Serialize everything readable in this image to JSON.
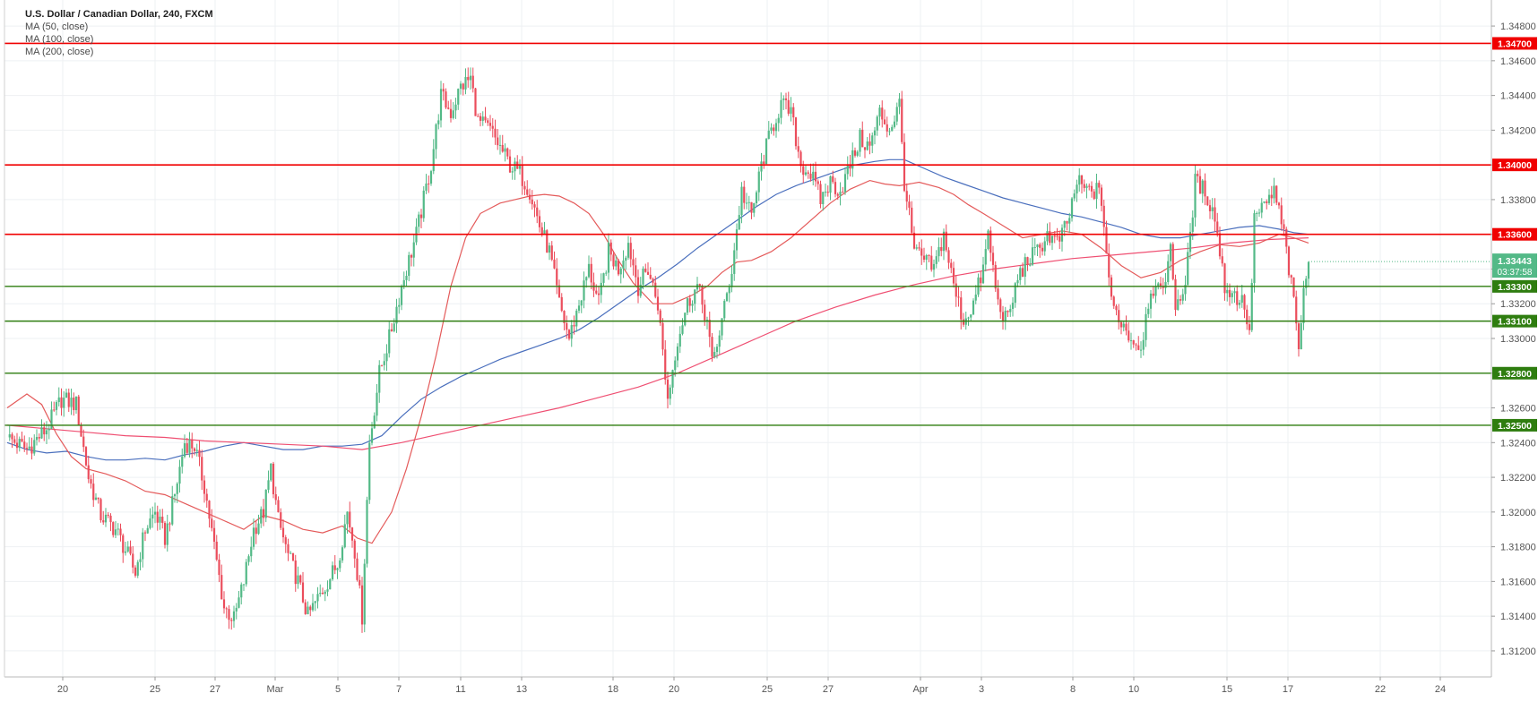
{
  "legend": {
    "title": "U.S. Dollar / Canadian Dollar, 240, FXCM",
    "ma1": "MA (50, close)",
    "ma2": "MA (100, close)",
    "ma3": "MA (200, close)"
  },
  "colors": {
    "up": "#53b987",
    "down": "#eb4d5c",
    "ma50": "#e45a5a",
    "ma100": "#4a6fbd",
    "ma200": "#ef4f72",
    "resistance": "#f00000",
    "support": "#2e7d0f",
    "grid": "#eef0f3",
    "axis_text": "#555555"
  },
  "chart_data": {
    "type": "candlestick",
    "title": "U.S. Dollar / Canadian Dollar, 240, FXCM",
    "ylim": [
      1.3105,
      1.3495
    ],
    "y_ticks": [
      "1.34800",
      "1.34600",
      "1.34400",
      "1.34200",
      "1.34000",
      "1.33800",
      "1.33600",
      "1.33400",
      "1.33200",
      "1.33000",
      "1.32800",
      "1.32600",
      "1.32400",
      "1.32200",
      "1.32000",
      "1.31800",
      "1.31600",
      "1.31400",
      "1.31200"
    ],
    "x_ticks": [
      "20",
      "25",
      "27",
      "Mar",
      "5",
      "7",
      "11",
      "13",
      "18",
      "20",
      "25",
      "27",
      "Apr",
      "3",
      "8",
      "10",
      "15",
      "17",
      "22",
      "24"
    ],
    "current_price": "1.33443",
    "countdown": "03:37:58",
    "resistance_levels": [
      {
        "value": 1.347,
        "label": "1.34700"
      },
      {
        "value": 1.34,
        "label": "1.34000"
      },
      {
        "value": 1.336,
        "label": "1.33600"
      }
    ],
    "support_levels": [
      {
        "value": 1.333,
        "label": "1.33300"
      },
      {
        "value": 1.331,
        "label": "1.33100"
      },
      {
        "value": 1.328,
        "label": "1.32800"
      },
      {
        "value": 1.325,
        "label": "1.32500"
      }
    ],
    "price_path": [
      [
        0,
        1.3243
      ],
      [
        8,
        1.3236
      ],
      [
        16,
        1.3248
      ],
      [
        22,
        1.3265
      ],
      [
        28,
        1.3262
      ],
      [
        33,
        1.322
      ],
      [
        38,
        1.3198
      ],
      [
        44,
        1.319
      ],
      [
        48,
        1.3178
      ],
      [
        52,
        1.3165
      ],
      [
        56,
        1.319
      ],
      [
        60,
        1.32
      ],
      [
        64,
        1.3185
      ],
      [
        68,
        1.321
      ],
      [
        72,
        1.324
      ],
      [
        76,
        1.3238
      ],
      [
        80,
        1.3215
      ],
      [
        84,
        1.318
      ],
      [
        88,
        1.3145
      ],
      [
        92,
        1.3138
      ],
      [
        96,
        1.316
      ],
      [
        100,
        1.319
      ],
      [
        104,
        1.32
      ],
      [
        107,
        1.3225
      ],
      [
        110,
        1.3195
      ],
      [
        114,
        1.3175
      ],
      [
        118,
        1.316
      ],
      [
        122,
        1.314
      ],
      [
        126,
        1.315
      ],
      [
        130,
        1.316
      ],
      [
        134,
        1.317
      ],
      [
        138,
        1.32
      ],
      [
        141,
        1.3178
      ],
      [
        144,
        1.314
      ],
      [
        147,
        1.324
      ],
      [
        151,
        1.328
      ],
      [
        155,
        1.33
      ],
      [
        160,
        1.333
      ],
      [
        166,
        1.336
      ],
      [
        172,
        1.34
      ],
      [
        176,
        1.344
      ],
      [
        180,
        1.343
      ],
      [
        184,
        1.3445
      ],
      [
        188,
        1.345
      ],
      [
        191,
        1.3425
      ],
      [
        196,
        1.342
      ],
      [
        200,
        1.341
      ],
      [
        204,
        1.34
      ],
      [
        208,
        1.3395
      ],
      [
        212,
        1.3385
      ],
      [
        216,
        1.3365
      ],
      [
        220,
        1.335
      ],
      [
        224,
        1.332
      ],
      [
        228,
        1.33
      ],
      [
        232,
        1.332
      ],
      [
        236,
        1.334
      ],
      [
        240,
        1.332
      ],
      [
        244,
        1.335
      ],
      [
        248,
        1.334
      ],
      [
        252,
        1.3355
      ],
      [
        256,
        1.333
      ],
      [
        260,
        1.334
      ],
      [
        264,
        1.332
      ],
      [
        268,
        1.3265
      ],
      [
        272,
        1.33
      ],
      [
        276,
        1.332
      ],
      [
        280,
        1.333
      ],
      [
        284,
        1.331
      ],
      [
        286,
        1.3285
      ],
      [
        290,
        1.331
      ],
      [
        294,
        1.334
      ],
      [
        298,
        1.3385
      ],
      [
        302,
        1.337
      ],
      [
        306,
        1.34
      ],
      [
        310,
        1.342
      ],
      [
        314,
        1.3435
      ],
      [
        318,
        1.343
      ],
      [
        322,
        1.34
      ],
      [
        326,
        1.3395
      ],
      [
        330,
        1.338
      ],
      [
        334,
        1.339
      ],
      [
        338,
        1.3385
      ],
      [
        342,
        1.34
      ],
      [
        346,
        1.3415
      ],
      [
        350,
        1.341
      ],
      [
        354,
        1.343
      ],
      [
        358,
        1.342
      ],
      [
        362,
        1.3435
      ],
      [
        364,
        1.339
      ],
      [
        368,
        1.335
      ],
      [
        372,
        1.3345
      ],
      [
        376,
        1.334
      ],
      [
        380,
        1.336
      ],
      [
        384,
        1.333
      ],
      [
        388,
        1.331
      ],
      [
        392,
        1.332
      ],
      [
        396,
        1.334
      ],
      [
        398,
        1.336
      ],
      [
        402,
        1.332
      ],
      [
        406,
        1.331
      ],
      [
        410,
        1.3335
      ],
      [
        414,
        1.3345
      ],
      [
        418,
        1.335
      ],
      [
        422,
        1.336
      ],
      [
        426,
        1.3355
      ],
      [
        430,
        1.3365
      ],
      [
        434,
        1.339
      ],
      [
        438,
        1.3385
      ],
      [
        442,
        1.3385
      ],
      [
        444,
        1.338
      ],
      [
        448,
        1.332
      ],
      [
        452,
        1.331
      ],
      [
        456,
        1.33
      ],
      [
        460,
        1.3295
      ],
      [
        464,
        1.333
      ],
      [
        468,
        1.3325
      ],
      [
        472,
        1.335
      ],
      [
        474,
        1.332
      ],
      [
        478,
        1.333
      ],
      [
        482,
        1.339
      ],
      [
        486,
        1.3385
      ],
      [
        490,
        1.337
      ],
      [
        494,
        1.333
      ],
      [
        498,
        1.3325
      ],
      [
        502,
        1.332
      ],
      [
        504,
        1.33
      ],
      [
        506,
        1.337
      ],
      [
        510,
        1.3375
      ],
      [
        514,
        1.3385
      ],
      [
        518,
        1.336
      ],
      [
        520,
        1.334
      ],
      [
        522,
        1.332
      ],
      [
        524,
        1.3295
      ],
      [
        526,
        1.3325
      ],
      [
        528,
        1.3344
      ]
    ],
    "ma50": [
      [
        0,
        1.326
      ],
      [
        8,
        1.3268
      ],
      [
        14,
        1.3262
      ],
      [
        20,
        1.3245
      ],
      [
        26,
        1.3232
      ],
      [
        32,
        1.3225
      ],
      [
        40,
        1.3222
      ],
      [
        48,
        1.3218
      ],
      [
        56,
        1.3212
      ],
      [
        64,
        1.321
      ],
      [
        72,
        1.3205
      ],
      [
        80,
        1.32
      ],
      [
        88,
        1.3195
      ],
      [
        96,
        1.319
      ],
      [
        104,
        1.3198
      ],
      [
        112,
        1.3195
      ],
      [
        120,
        1.319
      ],
      [
        128,
        1.3188
      ],
      [
        136,
        1.3192
      ],
      [
        142,
        1.3185
      ],
      [
        148,
        1.3182
      ],
      [
        156,
        1.32
      ],
      [
        162,
        1.3225
      ],
      [
        168,
        1.3255
      ],
      [
        174,
        1.329
      ],
      [
        180,
        1.333
      ],
      [
        186,
        1.3358
      ],
      [
        192,
        1.3372
      ],
      [
        200,
        1.3378
      ],
      [
        206,
        1.338
      ],
      [
        212,
        1.3382
      ],
      [
        218,
        1.3383
      ],
      [
        224,
        1.3382
      ],
      [
        230,
        1.3378
      ],
      [
        236,
        1.3372
      ],
      [
        242,
        1.336
      ],
      [
        248,
        1.3345
      ],
      [
        254,
        1.3332
      ],
      [
        262,
        1.332
      ],
      [
        270,
        1.332
      ],
      [
        278,
        1.3325
      ],
      [
        284,
        1.333
      ],
      [
        290,
        1.3338
      ],
      [
        296,
        1.3344
      ],
      [
        302,
        1.3345
      ],
      [
        310,
        1.335
      ],
      [
        318,
        1.3358
      ],
      [
        326,
        1.3368
      ],
      [
        334,
        1.3378
      ],
      [
        342,
        1.3386
      ],
      [
        350,
        1.3391
      ],
      [
        356,
        1.3389
      ],
      [
        362,
        1.3388
      ],
      [
        370,
        1.339
      ],
      [
        378,
        1.3387
      ],
      [
        384,
        1.3383
      ],
      [
        390,
        1.3377
      ],
      [
        396,
        1.3372
      ],
      [
        404,
        1.3365
      ],
      [
        412,
        1.3358
      ],
      [
        420,
        1.336
      ],
      [
        428,
        1.3362
      ],
      [
        436,
        1.336
      ],
      [
        444,
        1.3352
      ],
      [
        452,
        1.3342
      ],
      [
        460,
        1.3335
      ],
      [
        468,
        1.3338
      ],
      [
        476,
        1.3345
      ],
      [
        484,
        1.335
      ],
      [
        492,
        1.3354
      ],
      [
        500,
        1.3353
      ],
      [
        508,
        1.3355
      ],
      [
        516,
        1.336
      ],
      [
        522,
        1.3358
      ],
      [
        528,
        1.3355
      ]
    ],
    "ma100": [
      [
        0,
        1.324
      ],
      [
        8,
        1.3236
      ],
      [
        16,
        1.3234
      ],
      [
        24,
        1.3235
      ],
      [
        32,
        1.3232
      ],
      [
        40,
        1.323
      ],
      [
        48,
        1.323
      ],
      [
        56,
        1.3231
      ],
      [
        64,
        1.323
      ],
      [
        72,
        1.3233
      ],
      [
        80,
        1.3235
      ],
      [
        88,
        1.3238
      ],
      [
        96,
        1.324
      ],
      [
        104,
        1.3238
      ],
      [
        112,
        1.3236
      ],
      [
        120,
        1.3236
      ],
      [
        128,
        1.3238
      ],
      [
        136,
        1.3238
      ],
      [
        144,
        1.3239
      ],
      [
        152,
        1.3244
      ],
      [
        160,
        1.3255
      ],
      [
        168,
        1.3265
      ],
      [
        176,
        1.3272
      ],
      [
        184,
        1.3278
      ],
      [
        192,
        1.3283
      ],
      [
        200,
        1.3288
      ],
      [
        208,
        1.3292
      ],
      [
        216,
        1.3296
      ],
      [
        224,
        1.33
      ],
      [
        232,
        1.3305
      ],
      [
        240,
        1.3312
      ],
      [
        248,
        1.332
      ],
      [
        256,
        1.3328
      ],
      [
        264,
        1.3335
      ],
      [
        272,
        1.3343
      ],
      [
        280,
        1.3352
      ],
      [
        288,
        1.336
      ],
      [
        296,
        1.3368
      ],
      [
        304,
        1.3376
      ],
      [
        312,
        1.3383
      ],
      [
        320,
        1.3388
      ],
      [
        328,
        1.3392
      ],
      [
        336,
        1.3396
      ],
      [
        344,
        1.34
      ],
      [
        352,
        1.3402
      ],
      [
        358,
        1.3403
      ],
      [
        364,
        1.3403
      ],
      [
        372,
        1.3398
      ],
      [
        380,
        1.3393
      ],
      [
        388,
        1.3389
      ],
      [
        396,
        1.3385
      ],
      [
        404,
        1.3381
      ],
      [
        412,
        1.3378
      ],
      [
        420,
        1.3375
      ],
      [
        428,
        1.3372
      ],
      [
        436,
        1.337
      ],
      [
        444,
        1.3367
      ],
      [
        452,
        1.3364
      ],
      [
        460,
        1.336
      ],
      [
        468,
        1.3358
      ],
      [
        476,
        1.3358
      ],
      [
        484,
        1.336
      ],
      [
        492,
        1.3362
      ],
      [
        500,
        1.3364
      ],
      [
        508,
        1.3365
      ],
      [
        516,
        1.3363
      ],
      [
        522,
        1.3361
      ],
      [
        528,
        1.336
      ]
    ],
    "ma200": [
      [
        0,
        1.325
      ],
      [
        16,
        1.3248
      ],
      [
        32,
        1.3246
      ],
      [
        48,
        1.3244
      ],
      [
        64,
        1.3243
      ],
      [
        80,
        1.3241
      ],
      [
        96,
        1.324
      ],
      [
        112,
        1.3239
      ],
      [
        128,
        1.3238
      ],
      [
        144,
        1.3236
      ],
      [
        160,
        1.324
      ],
      [
        176,
        1.3245
      ],
      [
        192,
        1.325
      ],
      [
        208,
        1.3255
      ],
      [
        224,
        1.326
      ],
      [
        240,
        1.3266
      ],
      [
        256,
        1.3272
      ],
      [
        272,
        1.328
      ],
      [
        288,
        1.329
      ],
      [
        304,
        1.33
      ],
      [
        320,
        1.331
      ],
      [
        336,
        1.3318
      ],
      [
        352,
        1.3325
      ],
      [
        368,
        1.3331
      ],
      [
        384,
        1.3336
      ],
      [
        400,
        1.334
      ],
      [
        416,
        1.3343
      ],
      [
        432,
        1.3346
      ],
      [
        448,
        1.3348
      ],
      [
        464,
        1.335
      ],
      [
        480,
        1.3352
      ],
      [
        496,
        1.3355
      ],
      [
        512,
        1.3357
      ],
      [
        528,
        1.3358
      ]
    ]
  }
}
